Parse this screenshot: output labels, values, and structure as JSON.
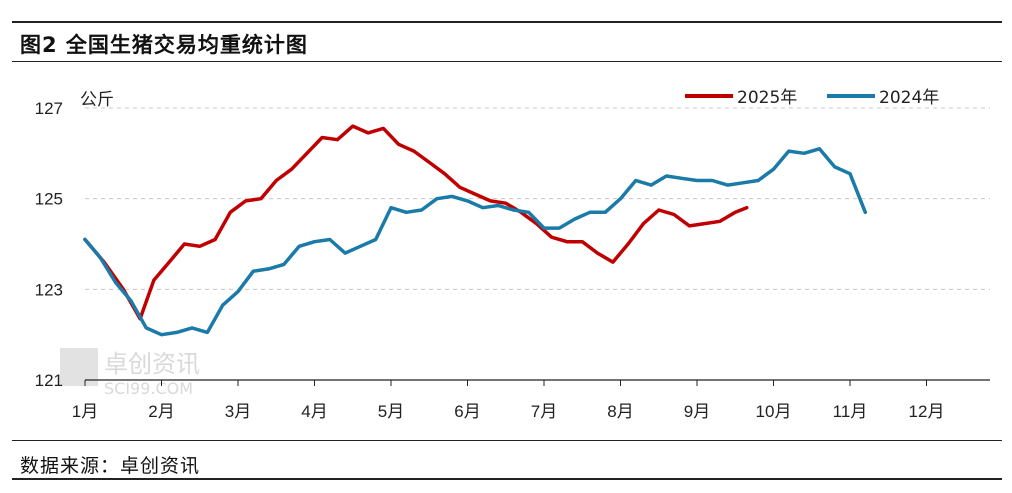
{
  "title": "图2 全国生猪交易均重统计图",
  "source": "数据来源：卓创资讯",
  "watermark": {
    "cn": "卓创资讯",
    "en": "SCI99.COM"
  },
  "chart_data": {
    "type": "line",
    "unit": "公斤",
    "xlim": [
      1,
      12.85
    ],
    "ylim": [
      121,
      127.2
    ],
    "yticks": [
      121,
      123,
      125,
      127
    ],
    "months": [
      "1月",
      "2月",
      "3月",
      "4月",
      "5月",
      "6月",
      "7月",
      "8月",
      "9月",
      "10月",
      "11月",
      "12月"
    ],
    "grid": "horizontal dashed",
    "legend_position": "top-right",
    "series": [
      {
        "name": "2025年",
        "color": "#c00000",
        "points": [
          [
            1.0,
            124.1
          ],
          [
            1.25,
            123.6
          ],
          [
            1.5,
            123.0
          ],
          [
            1.72,
            122.35
          ],
          [
            1.9,
            123.2
          ],
          [
            2.1,
            123.6
          ],
          [
            2.3,
            124.0
          ],
          [
            2.5,
            123.95
          ],
          [
            2.7,
            124.1
          ],
          [
            2.9,
            124.7
          ],
          [
            3.1,
            124.95
          ],
          [
            3.3,
            125.0
          ],
          [
            3.5,
            125.4
          ],
          [
            3.7,
            125.65
          ],
          [
            3.9,
            126.0
          ],
          [
            4.1,
            126.35
          ],
          [
            4.3,
            126.3
          ],
          [
            4.5,
            126.6
          ],
          [
            4.7,
            126.45
          ],
          [
            4.9,
            126.55
          ],
          [
            5.1,
            126.2
          ],
          [
            5.3,
            126.05
          ],
          [
            5.5,
            125.8
          ],
          [
            5.7,
            125.55
          ],
          [
            5.9,
            125.25
          ],
          [
            6.1,
            125.1
          ],
          [
            6.3,
            124.95
          ],
          [
            6.5,
            124.9
          ],
          [
            6.7,
            124.7
          ],
          [
            6.9,
            124.45
          ],
          [
            7.1,
            124.15
          ],
          [
            7.3,
            124.05
          ],
          [
            7.5,
            124.05
          ],
          [
            7.7,
            123.8
          ],
          [
            7.9,
            123.6
          ],
          [
            8.1,
            124.0
          ],
          [
            8.3,
            124.45
          ],
          [
            8.5,
            124.75
          ],
          [
            8.7,
            124.65
          ],
          [
            8.9,
            124.4
          ],
          [
            9.1,
            124.45
          ],
          [
            9.3,
            124.5
          ],
          [
            9.5,
            124.7
          ],
          [
            9.65,
            124.8
          ]
        ]
      },
      {
        "name": "2024年",
        "color": "#1a7aa8",
        "points": [
          [
            1.0,
            124.1
          ],
          [
            1.2,
            123.7
          ],
          [
            1.4,
            123.15
          ],
          [
            1.6,
            122.75
          ],
          [
            1.8,
            122.15
          ],
          [
            2.0,
            122.0
          ],
          [
            2.2,
            122.05
          ],
          [
            2.4,
            122.15
          ],
          [
            2.6,
            122.05
          ],
          [
            2.8,
            122.65
          ],
          [
            3.0,
            122.95
          ],
          [
            3.2,
            123.4
          ],
          [
            3.4,
            123.45
          ],
          [
            3.6,
            123.55
          ],
          [
            3.8,
            123.95
          ],
          [
            4.0,
            124.05
          ],
          [
            4.2,
            124.1
          ],
          [
            4.4,
            123.8
          ],
          [
            4.6,
            123.95
          ],
          [
            4.8,
            124.1
          ],
          [
            5.0,
            124.8
          ],
          [
            5.2,
            124.7
          ],
          [
            5.4,
            124.75
          ],
          [
            5.6,
            125.0
          ],
          [
            5.8,
            125.05
          ],
          [
            6.0,
            124.95
          ],
          [
            6.2,
            124.8
          ],
          [
            6.4,
            124.85
          ],
          [
            6.6,
            124.75
          ],
          [
            6.8,
            124.7
          ],
          [
            7.0,
            124.35
          ],
          [
            7.2,
            124.35
          ],
          [
            7.4,
            124.55
          ],
          [
            7.6,
            124.7
          ],
          [
            7.8,
            124.7
          ],
          [
            8.0,
            125.0
          ],
          [
            8.2,
            125.4
          ],
          [
            8.4,
            125.3
          ],
          [
            8.6,
            125.5
          ],
          [
            8.8,
            125.45
          ],
          [
            9.0,
            125.4
          ],
          [
            9.2,
            125.4
          ],
          [
            9.4,
            125.3
          ],
          [
            9.6,
            125.35
          ],
          [
            9.8,
            125.4
          ],
          [
            10.0,
            125.65
          ],
          [
            10.2,
            126.05
          ],
          [
            10.4,
            126.0
          ],
          [
            10.6,
            126.1
          ],
          [
            10.8,
            125.7
          ],
          [
            11.0,
            125.55
          ],
          [
            11.2,
            124.7
          ]
        ]
      }
    ]
  }
}
